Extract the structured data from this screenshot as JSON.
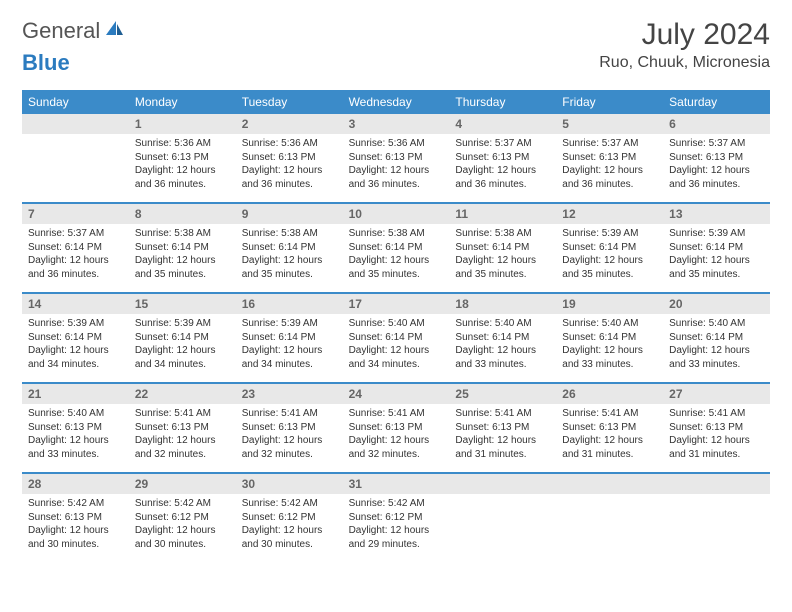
{
  "logo": {
    "general": "General",
    "blue": "Blue"
  },
  "title": "July 2024",
  "location": "Ruo, Chuuk, Micronesia",
  "colors": {
    "header_bg": "#3b8bc9",
    "header_text": "#ffffff",
    "daynum_bg": "#e8e8e8",
    "daynum_text": "#666666",
    "row_border": "#3b8bc9",
    "body_text": "#333333"
  },
  "weekdays": [
    "Sunday",
    "Monday",
    "Tuesday",
    "Wednesday",
    "Thursday",
    "Friday",
    "Saturday"
  ],
  "weeks": [
    [
      null,
      {
        "n": "1",
        "sr": "Sunrise: 5:36 AM",
        "ss": "Sunset: 6:13 PM",
        "dl": "Daylight: 12 hours and 36 minutes."
      },
      {
        "n": "2",
        "sr": "Sunrise: 5:36 AM",
        "ss": "Sunset: 6:13 PM",
        "dl": "Daylight: 12 hours and 36 minutes."
      },
      {
        "n": "3",
        "sr": "Sunrise: 5:36 AM",
        "ss": "Sunset: 6:13 PM",
        "dl": "Daylight: 12 hours and 36 minutes."
      },
      {
        "n": "4",
        "sr": "Sunrise: 5:37 AM",
        "ss": "Sunset: 6:13 PM",
        "dl": "Daylight: 12 hours and 36 minutes."
      },
      {
        "n": "5",
        "sr": "Sunrise: 5:37 AM",
        "ss": "Sunset: 6:13 PM",
        "dl": "Daylight: 12 hours and 36 minutes."
      },
      {
        "n": "6",
        "sr": "Sunrise: 5:37 AM",
        "ss": "Sunset: 6:13 PM",
        "dl": "Daylight: 12 hours and 36 minutes."
      }
    ],
    [
      {
        "n": "7",
        "sr": "Sunrise: 5:37 AM",
        "ss": "Sunset: 6:14 PM",
        "dl": "Daylight: 12 hours and 36 minutes."
      },
      {
        "n": "8",
        "sr": "Sunrise: 5:38 AM",
        "ss": "Sunset: 6:14 PM",
        "dl": "Daylight: 12 hours and 35 minutes."
      },
      {
        "n": "9",
        "sr": "Sunrise: 5:38 AM",
        "ss": "Sunset: 6:14 PM",
        "dl": "Daylight: 12 hours and 35 minutes."
      },
      {
        "n": "10",
        "sr": "Sunrise: 5:38 AM",
        "ss": "Sunset: 6:14 PM",
        "dl": "Daylight: 12 hours and 35 minutes."
      },
      {
        "n": "11",
        "sr": "Sunrise: 5:38 AM",
        "ss": "Sunset: 6:14 PM",
        "dl": "Daylight: 12 hours and 35 minutes."
      },
      {
        "n": "12",
        "sr": "Sunrise: 5:39 AM",
        "ss": "Sunset: 6:14 PM",
        "dl": "Daylight: 12 hours and 35 minutes."
      },
      {
        "n": "13",
        "sr": "Sunrise: 5:39 AM",
        "ss": "Sunset: 6:14 PM",
        "dl": "Daylight: 12 hours and 35 minutes."
      }
    ],
    [
      {
        "n": "14",
        "sr": "Sunrise: 5:39 AM",
        "ss": "Sunset: 6:14 PM",
        "dl": "Daylight: 12 hours and 34 minutes."
      },
      {
        "n": "15",
        "sr": "Sunrise: 5:39 AM",
        "ss": "Sunset: 6:14 PM",
        "dl": "Daylight: 12 hours and 34 minutes."
      },
      {
        "n": "16",
        "sr": "Sunrise: 5:39 AM",
        "ss": "Sunset: 6:14 PM",
        "dl": "Daylight: 12 hours and 34 minutes."
      },
      {
        "n": "17",
        "sr": "Sunrise: 5:40 AM",
        "ss": "Sunset: 6:14 PM",
        "dl": "Daylight: 12 hours and 34 minutes."
      },
      {
        "n": "18",
        "sr": "Sunrise: 5:40 AM",
        "ss": "Sunset: 6:14 PM",
        "dl": "Daylight: 12 hours and 33 minutes."
      },
      {
        "n": "19",
        "sr": "Sunrise: 5:40 AM",
        "ss": "Sunset: 6:14 PM",
        "dl": "Daylight: 12 hours and 33 minutes."
      },
      {
        "n": "20",
        "sr": "Sunrise: 5:40 AM",
        "ss": "Sunset: 6:14 PM",
        "dl": "Daylight: 12 hours and 33 minutes."
      }
    ],
    [
      {
        "n": "21",
        "sr": "Sunrise: 5:40 AM",
        "ss": "Sunset: 6:13 PM",
        "dl": "Daylight: 12 hours and 33 minutes."
      },
      {
        "n": "22",
        "sr": "Sunrise: 5:41 AM",
        "ss": "Sunset: 6:13 PM",
        "dl": "Daylight: 12 hours and 32 minutes."
      },
      {
        "n": "23",
        "sr": "Sunrise: 5:41 AM",
        "ss": "Sunset: 6:13 PM",
        "dl": "Daylight: 12 hours and 32 minutes."
      },
      {
        "n": "24",
        "sr": "Sunrise: 5:41 AM",
        "ss": "Sunset: 6:13 PM",
        "dl": "Daylight: 12 hours and 32 minutes."
      },
      {
        "n": "25",
        "sr": "Sunrise: 5:41 AM",
        "ss": "Sunset: 6:13 PM",
        "dl": "Daylight: 12 hours and 31 minutes."
      },
      {
        "n": "26",
        "sr": "Sunrise: 5:41 AM",
        "ss": "Sunset: 6:13 PM",
        "dl": "Daylight: 12 hours and 31 minutes."
      },
      {
        "n": "27",
        "sr": "Sunrise: 5:41 AM",
        "ss": "Sunset: 6:13 PM",
        "dl": "Daylight: 12 hours and 31 minutes."
      }
    ],
    [
      {
        "n": "28",
        "sr": "Sunrise: 5:42 AM",
        "ss": "Sunset: 6:13 PM",
        "dl": "Daylight: 12 hours and 30 minutes."
      },
      {
        "n": "29",
        "sr": "Sunrise: 5:42 AM",
        "ss": "Sunset: 6:12 PM",
        "dl": "Daylight: 12 hours and 30 minutes."
      },
      {
        "n": "30",
        "sr": "Sunrise: 5:42 AM",
        "ss": "Sunset: 6:12 PM",
        "dl": "Daylight: 12 hours and 30 minutes."
      },
      {
        "n": "31",
        "sr": "Sunrise: 5:42 AM",
        "ss": "Sunset: 6:12 PM",
        "dl": "Daylight: 12 hours and 29 minutes."
      },
      null,
      null,
      null
    ]
  ]
}
